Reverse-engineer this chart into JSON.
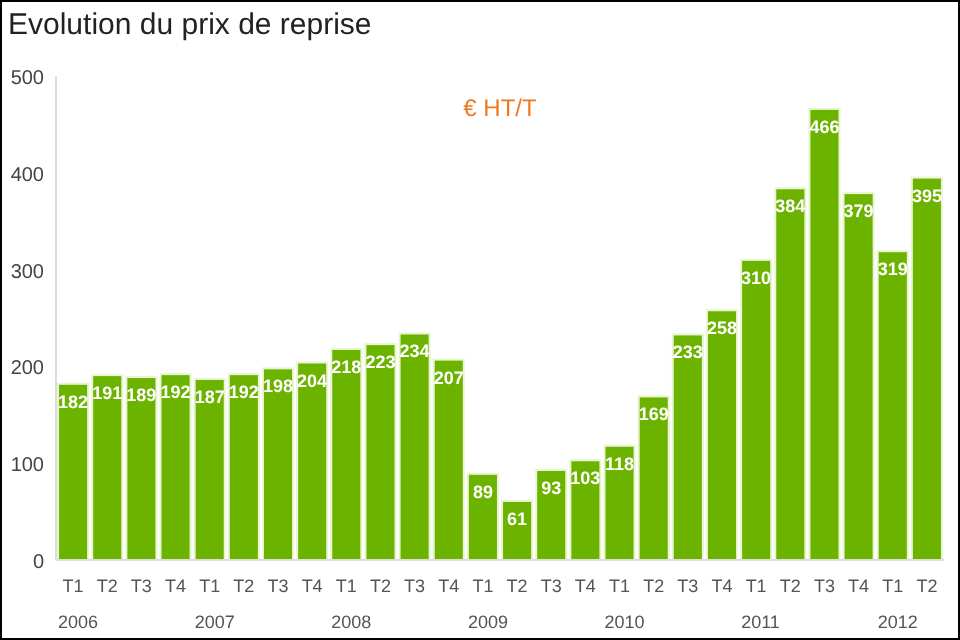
{
  "chart_data": {
    "type": "bar",
    "title": "Evolution du prix de reprise",
    "categories": [
      "T1",
      "T2",
      "T3",
      "T4",
      "T1",
      "T2",
      "T3",
      "T4",
      "T1",
      "T2",
      "T3",
      "T4",
      "T1",
      "T2",
      "T3",
      "T4",
      "T1",
      "T2",
      "T3",
      "T4",
      "T1",
      "T2",
      "T3",
      "T4",
      "T1",
      "T2"
    ],
    "values": [
      182,
      191,
      189,
      192,
      187,
      192,
      198,
      204,
      218,
      223,
      234,
      207,
      89,
      61,
      93,
      103,
      118,
      169,
      233,
      258,
      310,
      384,
      466,
      379,
      319,
      395
    ],
    "color": "#6cb300",
    "ylim": [
      0,
      500
    ],
    "yticks": [
      0,
      100,
      200,
      300,
      400,
      500
    ],
    "data_labels": true,
    "grid": false,
    "annotations": [
      "€ HT/T",
      "2006",
      "2007",
      "2008",
      "2009",
      "2010",
      "2011",
      "2012"
    ]
  }
}
